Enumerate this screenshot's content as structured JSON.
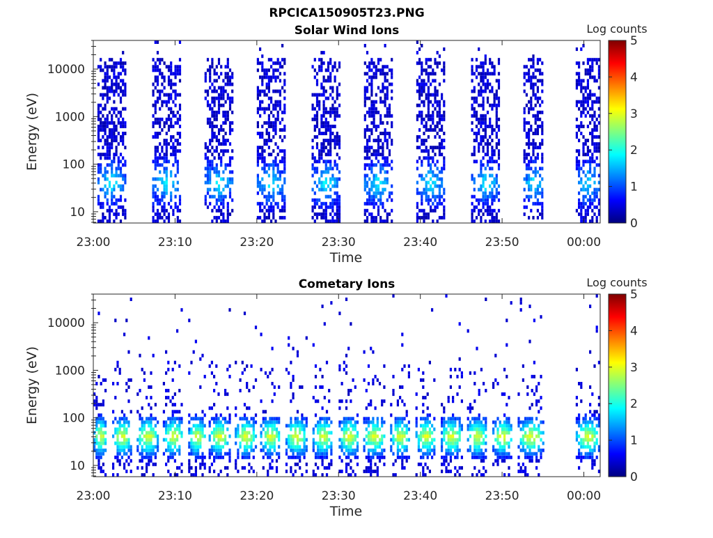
{
  "figure": {
    "title": "RPCICA150905T23.PNG"
  },
  "chart_data": [
    {
      "type": "heatmap",
      "title": "Solar Wind Ions",
      "xlabel": "Time",
      "ylabel": "Energy (eV)",
      "xlim": [
        "23:00",
        "00:02"
      ],
      "ylim": [
        5.8,
        40000
      ],
      "yscale": "log",
      "x_ticks": [
        "23:00",
        "23:10",
        "23:20",
        "23:30",
        "23:40",
        "23:50",
        "00:00"
      ],
      "y_ticks": [
        "10",
        "100",
        "1000",
        "10000"
      ],
      "grid": false,
      "colorbar": {
        "label": "Log counts",
        "min": 0,
        "max": 5,
        "ticks": [
          "0",
          "1",
          "2",
          "3",
          "4",
          "5"
        ],
        "colormap": "jet"
      },
      "scan_bursts": [
        {
          "start_min": 0.5,
          "end_min": 3.8
        },
        {
          "start_min": 7.2,
          "end_min": 10.5
        },
        {
          "start_min": 13.6,
          "end_min": 16.9
        },
        {
          "start_min": 20.0,
          "end_min": 23.3
        },
        {
          "start_min": 26.7,
          "end_min": 30.0
        },
        {
          "start_min": 33.1,
          "end_min": 36.4
        },
        {
          "start_min": 39.5,
          "end_min": 42.8
        },
        {
          "start_min": 46.2,
          "end_min": 49.5
        },
        {
          "start_min": 52.6,
          "end_min": 55.0
        },
        {
          "start_min": 59.0,
          "end_min": 61.8
        }
      ],
      "typical_log_counts": {
        "background": 0.2,
        "peak_energy_eV": 40,
        "peak": 1.5
      }
    },
    {
      "type": "heatmap",
      "title": "Cometary Ions",
      "xlabel": "Time",
      "ylabel": "Energy (eV)",
      "xlim": [
        "23:00",
        "00:02"
      ],
      "ylim": [
        5.8,
        40000
      ],
      "yscale": "log",
      "x_ticks": [
        "23:00",
        "23:10",
        "23:20",
        "23:30",
        "23:40",
        "23:50",
        "00:00"
      ],
      "y_ticks": [
        "10",
        "100",
        "1000",
        "10000"
      ],
      "grid": false,
      "colorbar": {
        "label": "Log counts",
        "min": 0,
        "max": 5,
        "ticks": [
          "0",
          "1",
          "2",
          "3",
          "4",
          "5"
        ],
        "colormap": "jet"
      },
      "scan_bursts": [
        {
          "start_min": 0.0,
          "end_min": 1.6
        },
        {
          "start_min": 2.3,
          "end_min": 4.6
        },
        {
          "start_min": 5.3,
          "end_min": 7.8
        },
        {
          "start_min": 8.5,
          "end_min": 10.9
        },
        {
          "start_min": 11.6,
          "end_min": 13.6
        },
        {
          "start_min": 14.1,
          "end_min": 16.6
        },
        {
          "start_min": 17.3,
          "end_min": 19.8
        },
        {
          "start_min": 20.4,
          "end_min": 22.8
        },
        {
          "start_min": 23.5,
          "end_min": 26.0
        },
        {
          "start_min": 26.8,
          "end_min": 29.2
        },
        {
          "start_min": 30.0,
          "end_min": 32.4
        },
        {
          "start_min": 33.0,
          "end_min": 35.6
        },
        {
          "start_min": 36.3,
          "end_min": 38.6
        },
        {
          "start_min": 39.4,
          "end_min": 41.8
        },
        {
          "start_min": 42.5,
          "end_min": 45.0
        },
        {
          "start_min": 45.7,
          "end_min": 48.0
        },
        {
          "start_min": 48.8,
          "end_min": 51.2
        },
        {
          "start_min": 51.9,
          "end_min": 55.0
        },
        {
          "start_min": 59.0,
          "end_min": 61.8
        }
      ],
      "typical_log_counts": {
        "background": 0.3,
        "peak_energy_eV": 40,
        "peak": 2.6
      }
    }
  ]
}
